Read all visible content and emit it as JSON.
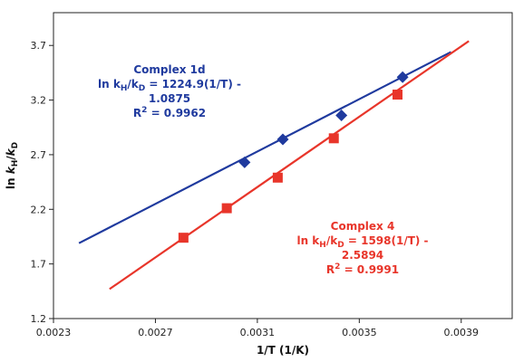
{
  "chart_data": {
    "type": "scatter",
    "xlabel": "1/T (1/K)",
    "ylabel": "ln kH/kD",
    "xlim": [
      0.0023,
      0.0041
    ],
    "ylim": [
      1.2,
      4.0
    ],
    "xticks": [
      0.0023,
      0.0027,
      0.0031,
      0.0035,
      0.0039
    ],
    "xtick_labels": [
      "0.0023",
      "0.0027",
      "0.0031",
      "0.0035",
      "0.0039"
    ],
    "yticks": [
      1.2,
      1.7,
      2.2,
      2.7,
      3.2,
      3.7
    ],
    "ytick_labels": [
      "1.2",
      "1.7",
      "2.2",
      "2.7",
      "3.2",
      "3.7"
    ],
    "grid": false,
    "legend": "none",
    "series": [
      {
        "name": "Complex 1d",
        "color": "#1f3a9e",
        "marker": "diamond",
        "x": [
          0.00305,
          0.0032,
          0.00343,
          0.00367
        ],
        "y": [
          2.63,
          2.84,
          3.06,
          3.41
        ],
        "fit": {
          "x": [
            0.0024,
            0.00386
          ],
          "y": [
            1.89,
            3.64
          ]
        }
      },
      {
        "name": "Complex 4",
        "color": "#e8352a",
        "marker": "square",
        "x": [
          0.00281,
          0.00298,
          0.00318,
          0.0034,
          0.00365
        ],
        "y": [
          1.94,
          2.21,
          2.49,
          2.85,
          3.25
        ],
        "fit": {
          "x": [
            0.00252,
            0.00393
          ],
          "y": [
            1.47,
            3.74
          ]
        }
      }
    ],
    "annotations": [
      {
        "series": "Complex 1d",
        "lines": [
          {
            "pre": "Complex 1d",
            "sub1": "",
            "mid": "",
            "sub2": "",
            "post": ""
          },
          {
            "pre": "ln k",
            "sub1": "H",
            "mid": "/k",
            "sub2": "D",
            "post": " = 1224.9(1/T) -"
          },
          {
            "pre": "1.0875",
            "sub1": "",
            "mid": "",
            "sub2": "",
            "post": ""
          },
          {
            "pre": "R",
            "sup": "2",
            "post": " = 0.9962"
          }
        ]
      },
      {
        "series": "Complex 4",
        "lines": [
          {
            "pre": "Complex 4",
            "sub1": "",
            "mid": "",
            "sub2": "",
            "post": ""
          },
          {
            "pre": "ln k",
            "sub1": "H",
            "mid": "/k",
            "sub2": "D",
            "post": " = 1598(1/T) -"
          },
          {
            "pre": "2.5894",
            "sub1": "",
            "mid": "",
            "sub2": "",
            "post": ""
          },
          {
            "pre": "R",
            "sup": "2",
            "post": " = 0.9991"
          }
        ]
      }
    ],
    "ylabel_parts": {
      "pre": "ln  ",
      "k1": "k",
      "s1": "H",
      "slash": "/",
      "k2": "k",
      "s2": "D"
    }
  }
}
